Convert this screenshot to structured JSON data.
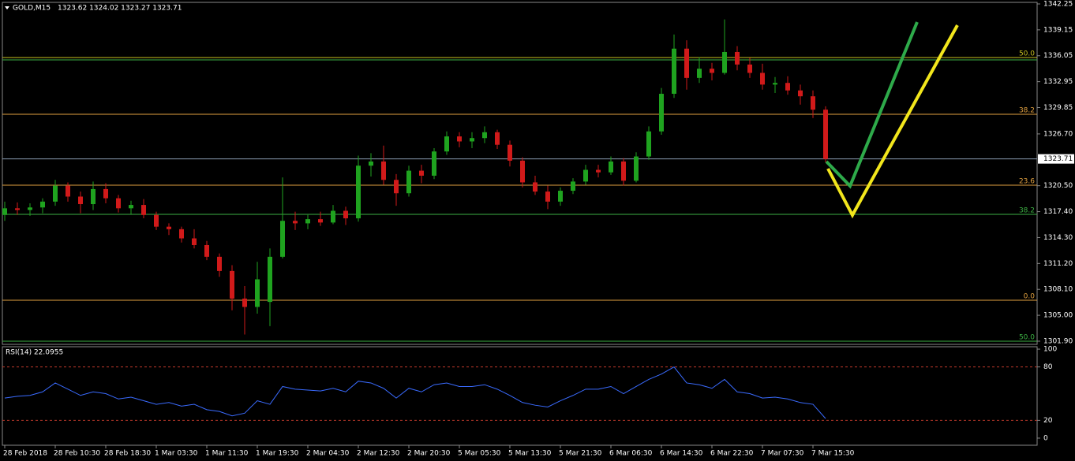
{
  "chart_data": [
    {
      "type": "candlestick",
      "title": "GOLD,M15",
      "subtitle": "1323.62 1324.02 1323.27 1323.71",
      "categories": [
        "28 Feb 2018",
        null,
        null,
        null,
        "28 Feb 10:30",
        null,
        null,
        null,
        "28 Feb 18:30",
        null,
        null,
        null,
        "1 Mar 03:30",
        null,
        null,
        null,
        "1 Mar 11:30",
        null,
        null,
        null,
        "1 Mar 19:30",
        null,
        null,
        null,
        "2 Mar 04:30",
        null,
        null,
        null,
        "2 Mar 12:30",
        null,
        null,
        null,
        "2 Mar 20:30",
        null,
        null,
        null,
        "5 Mar 05:30",
        null,
        null,
        null,
        "5 Mar 13:30",
        null,
        null,
        null,
        "5 Mar 21:30",
        null,
        null,
        null,
        "6 Mar 06:30",
        null,
        null,
        null,
        "6 Mar 14:30",
        null,
        null,
        null,
        "6 Mar 22:30",
        null,
        null,
        null,
        "7 Mar 07:30",
        null,
        null,
        null,
        "7 Mar 15:30",
        null
      ],
      "open": [
        1317.0,
        1317.8,
        1317.6,
        1317.9,
        1318.6,
        1320.5,
        1319.2,
        1318.3,
        1320.1,
        1319.0,
        1317.8,
        1318.2,
        1317.0,
        1315.6,
        1315.3,
        1314.2,
        1313.4,
        1312.0,
        1310.3,
        1307.0,
        1306.0,
        1306.6,
        1312.0,
        1316.3,
        1316.0,
        1316.5,
        1316.1,
        1317.5,
        1316.6,
        1322.9,
        1323.4,
        1321.2,
        1319.6,
        1322.3,
        1321.7,
        1324.6,
        1326.4,
        1325.8,
        1326.2,
        1326.9,
        1325.4,
        1323.5,
        1320.9,
        1319.8,
        1318.6,
        1319.9,
        1321.0,
        1322.4,
        1322.1,
        1323.4,
        1321.1,
        1324.0,
        1327.0,
        1331.5,
        1336.9,
        1333.4,
        1334.5,
        1334.0,
        1336.5,
        1335.0,
        1334.0,
        1332.6,
        1332.8,
        1331.9,
        1331.2,
        1329.6
      ],
      "high": [
        1318.6,
        1318.5,
        1318.4,
        1319.0,
        1321.2,
        1320.9,
        1319.8,
        1321.0,
        1320.8,
        1319.4,
        1318.7,
        1318.9,
        1317.4,
        1316.0,
        1315.6,
        1315.3,
        1313.9,
        1312.4,
        1311.0,
        1308.5,
        1311.4,
        1313.0,
        1321.5,
        1317.4,
        1317.0,
        1317.4,
        1318.2,
        1318.0,
        1324.1,
        1324.4,
        1325.3,
        1321.9,
        1322.9,
        1323.0,
        1325.0,
        1327.0,
        1326.9,
        1326.9,
        1327.6,
        1327.2,
        1325.9,
        1323.9,
        1321.7,
        1320.5,
        1320.3,
        1321.4,
        1323.0,
        1323.0,
        1324.0,
        1323.8,
        1324.5,
        1327.6,
        1332.2,
        1338.6,
        1337.9,
        1335.9,
        1335.2,
        1340.4,
        1337.2,
        1335.8,
        1335.1,
        1333.5,
        1333.6,
        1332.6,
        1331.9,
        1330.0
      ],
      "low": [
        1316.3,
        1317.0,
        1316.9,
        1317.2,
        1318.1,
        1318.6,
        1317.2,
        1317.6,
        1318.4,
        1317.3,
        1317.1,
        1316.6,
        1315.2,
        1314.6,
        1313.7,
        1313.0,
        1311.6,
        1309.6,
        1305.6,
        1302.7,
        1305.2,
        1303.7,
        1311.8,
        1315.2,
        1315.3,
        1315.7,
        1315.9,
        1315.8,
        1316.2,
        1321.6,
        1320.6,
        1318.1,
        1319.2,
        1320.8,
        1321.3,
        1324.2,
        1325.1,
        1325.0,
        1325.6,
        1324.9,
        1322.8,
        1320.3,
        1319.4,
        1317.7,
        1318.1,
        1319.5,
        1320.6,
        1321.5,
        1321.8,
        1320.5,
        1320.9,
        1323.6,
        1326.6,
        1331.0,
        1332.0,
        1332.8,
        1333.1,
        1333.8,
        1334.3,
        1333.4,
        1332.0,
        1331.6,
        1331.4,
        1330.2,
        1328.6,
        1323.3
      ],
      "close": [
        1317.8,
        1317.6,
        1317.9,
        1318.6,
        1320.5,
        1319.2,
        1318.3,
        1320.1,
        1319.0,
        1317.8,
        1318.2,
        1317.0,
        1315.6,
        1315.3,
        1314.2,
        1313.4,
        1312.0,
        1310.3,
        1307.0,
        1306.0,
        1309.3,
        1312.0,
        1316.3,
        1316.0,
        1316.5,
        1316.1,
        1317.5,
        1316.6,
        1322.9,
        1323.4,
        1321.2,
        1319.6,
        1322.3,
        1321.7,
        1324.6,
        1326.4,
        1325.8,
        1326.2,
        1326.9,
        1325.4,
        1323.5,
        1320.9,
        1319.8,
        1318.6,
        1319.9,
        1321.0,
        1322.4,
        1322.1,
        1323.4,
        1321.1,
        1324.0,
        1327.0,
        1331.5,
        1336.9,
        1333.4,
        1334.5,
        1334.0,
        1336.5,
        1335.0,
        1334.0,
        1332.6,
        1332.8,
        1331.9,
        1331.2,
        1329.6,
        1323.7
      ],
      "up_color": "#1fa31f",
      "down_color": "#d11a1a",
      "ylim": [
        1301.52,
        1342.72
      ],
      "yticks": [
        1342.25,
        1339.15,
        1336.05,
        1332.95,
        1329.85,
        {
          "value": 1326.7,
          "label": "1326.70"
        },
        {
          "value": 1320.5,
          "label": "1320.50"
        },
        {
          "value": 1317.4,
          "label": "1317.40"
        },
        {
          "value": 1314.3,
          "label": "1314.30"
        },
        {
          "value": 1311.2,
          "label": "1311.20"
        },
        {
          "value": 1308.1,
          "label": "1308.10"
        },
        {
          "value": 1305.0,
          "label": "1305.00"
        },
        {
          "value": 1301.9,
          "label": "1301.90"
        }
      ],
      "current_price": 1323.71,
      "levels": [
        {
          "value": 1335.84,
          "label": "50.0",
          "color": "#c8c020"
        },
        {
          "value": 1335.56,
          "color": "#3cb043"
        },
        {
          "value": 1329.05,
          "label": "38.2",
          "color": "#e0a040"
        },
        {
          "value": 1320.56,
          "label": "23.6",
          "color": "#e0a040"
        },
        {
          "value": 1317.08,
          "label": "38.2",
          "color": "#3cb043"
        },
        {
          "value": 1306.8,
          "label": "0.0",
          "color": "#e0a040"
        },
        {
          "value": 1301.9,
          "label": "50.0",
          "color": "#3cb043"
        }
      ]
    },
    {
      "type": "line",
      "title": "RSI(14) 22.0955",
      "color": "#3a6bff",
      "values": [
        45,
        47,
        48,
        52,
        62,
        55,
        48,
        52,
        50,
        44,
        46,
        42,
        38,
        40,
        36,
        38,
        32,
        30,
        25,
        28,
        42,
        38,
        58,
        55,
        54,
        53,
        56,
        52,
        64,
        62,
        56,
        45,
        56,
        52,
        60,
        62,
        58,
        58,
        60,
        55,
        48,
        40,
        37,
        35,
        42,
        48,
        55,
        55,
        58,
        50,
        58,
        66,
        72,
        80,
        62,
        60,
        56,
        66,
        52,
        50,
        45,
        46,
        44,
        40,
        38,
        22
      ],
      "ylim": [
        -8,
        102.7
      ],
      "yticks": [
        0,
        20,
        80,
        100
      ],
      "levels": [
        80,
        20
      ],
      "level_color": "#c0392b"
    }
  ]
}
